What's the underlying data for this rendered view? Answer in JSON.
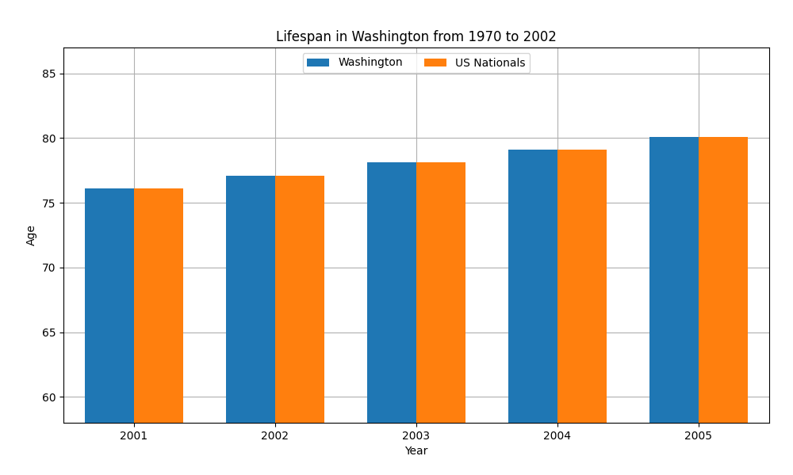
{
  "chart_data": {
    "type": "bar",
    "title": "Lifespan in Washington from 1970 to 2002",
    "x_label": "Year",
    "y_label": "Age",
    "categories": [
      "2001",
      "2002",
      "2003",
      "2004",
      "2005"
    ],
    "series": [
      {
        "name": "Washington",
        "values": [
          76.1,
          77.1,
          78.1,
          79.1,
          80.1
        ]
      },
      {
        "name": "US Nationals",
        "values": [
          76.1,
          77.1,
          78.1,
          79.1,
          80.1
        ]
      }
    ],
    "ylim": [
      58,
      87
    ],
    "yticks": [
      60,
      65,
      70,
      75,
      80,
      85
    ],
    "grid": true,
    "legend": "upper center"
  }
}
